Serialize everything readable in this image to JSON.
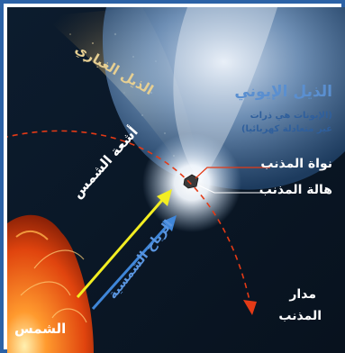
{
  "labels": {
    "dust_tail": "الذيل الغباري",
    "ion_tail": "الذيل الإيوني",
    "ion_note_line1": "(الإيونات هي ذرات",
    "ion_note_line2": "غير متعادلة كهربائيا)",
    "comet_nucleus": "نواة المذنب",
    "comet_coma": "هالة المذنب",
    "sunlight": "أشعة الشمس",
    "solar_wind": "الرياح الشمسية",
    "comet_orbit_line1": "مدار",
    "comet_orbit_line2": "المذنب",
    "sun": "الشمس"
  },
  "colors": {
    "frame": "#2c62a6",
    "space": "#0b1a2a",
    "sun": "#e0440e",
    "sunlight_arrow": "#f3ee22",
    "solar_wind_arrow": "#3f86d9",
    "orbit": "#e43a16",
    "ion_tail": "#4d86c7",
    "dust_tail": "#c3a56a"
  }
}
